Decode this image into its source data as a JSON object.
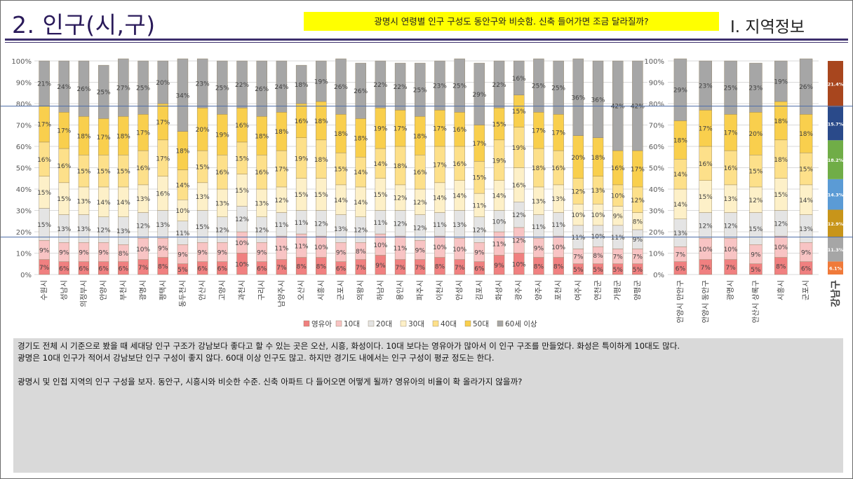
{
  "header": {
    "title": "2. 인구(시,구)",
    "subtitle": "광명시 연령별 인구 구성도 동안구와 비슷함. 신축 들어가면 조금 달라질까?",
    "section": "I. 지역정보"
  },
  "colors": {
    "title_text": "#2a1a5a",
    "rule": "#3c2e6c",
    "subtitle_bg": "#ffff00",
    "comment_bg": "#d9d9d9",
    "guide_line": "#4f6fa8"
  },
  "chart_data": [
    {
      "type": "bar",
      "stacked": true,
      "percent": true,
      "ylim": [
        0,
        100
      ],
      "yticks": [
        "0%",
        "10%",
        "20%",
        "30%",
        "40%",
        "50%",
        "60%",
        "70%",
        "80%",
        "90%",
        "100%"
      ],
      "categories": [
        "수원시",
        "성남시",
        "의정부시",
        "안양시",
        "부천시",
        "광명시",
        "평택시",
        "동두천시",
        "안산시",
        "고양시",
        "과천시",
        "구리시",
        "남양주시",
        "오산시",
        "시흥시",
        "군포시",
        "의왕시",
        "하남시",
        "용인시",
        "파주시",
        "이천시",
        "안성시",
        "김포시",
        "화성시",
        "광주시",
        "양주시",
        "포천시",
        "여주시",
        "연천군",
        "가평군",
        "양평군"
      ],
      "series": [
        {
          "name": "영유아",
          "color": "#f08080",
          "values": [
            7,
            6,
            6,
            6,
            6,
            7,
            8,
            5,
            6,
            6,
            10,
            6,
            7,
            8,
            8,
            6,
            7,
            9,
            7,
            7,
            8,
            7,
            6,
            9,
            10,
            8,
            8,
            5,
            5,
            5,
            5
          ]
        },
        {
          "name": "10대",
          "color": "#f8c4c4",
          "values": [
            9,
            9,
            9,
            9,
            8,
            10,
            9,
            9,
            9,
            9,
            10,
            9,
            11,
            11,
            10,
            9,
            8,
            10,
            11,
            9,
            10,
            10,
            9,
            11,
            12,
            9,
            10,
            7,
            8,
            7,
            7
          ]
        },
        {
          "name": "20대",
          "color": "#e4e4e4",
          "values": [
            15,
            13,
            13,
            12,
            13,
            12,
            13,
            11,
            15,
            12,
            12,
            12,
            11,
            11,
            12,
            13,
            12,
            11,
            12,
            12,
            11,
            13,
            12,
            10,
            12,
            11,
            11,
            11,
            10,
            11,
            9
          ]
        },
        {
          "name": "30대",
          "color": "#fdf0c8",
          "values": [
            15,
            15,
            13,
            14,
            14,
            13,
            16,
            10,
            13,
            13,
            15,
            13,
            12,
            15,
            15,
            14,
            14,
            15,
            12,
            12,
            14,
            14,
            11,
            14,
            16,
            13,
            13,
            10,
            10,
            9,
            8
          ]
        },
        {
          "name": "40대",
          "color": "#fde08a",
          "values": [
            16,
            16,
            15,
            15,
            15,
            16,
            17,
            14,
            15,
            16,
            15,
            16,
            17,
            19,
            18,
            15,
            14,
            14,
            18,
            16,
            17,
            16,
            15,
            19,
            19,
            18,
            16,
            12,
            13,
            10,
            12
          ]
        },
        {
          "name": "50대",
          "color": "#f9cf4d",
          "values": [
            17,
            17,
            18,
            17,
            18,
            17,
            17,
            18,
            20,
            19,
            16,
            18,
            18,
            16,
            18,
            18,
            18,
            19,
            17,
            18,
            17,
            16,
            17,
            15,
            15,
            17,
            17,
            20,
            18,
            16,
            17
          ]
        },
        {
          "name": "60세 이상",
          "color": "#a6a6a6",
          "values": [
            21,
            24,
            26,
            25,
            27,
            25,
            20,
            34,
            23,
            25,
            22,
            26,
            24,
            18,
            19,
            26,
            26,
            22,
            22,
            25,
            23,
            25,
            29,
            22,
            16,
            25,
            25,
            36,
            36,
            42,
            42
          ]
        }
      ],
      "label_suffix": "%",
      "legend": [
        "영유아",
        "10대",
        "20대",
        "30대",
        "40대",
        "50대",
        "60세 이상"
      ],
      "legend_position": "bottom"
    },
    {
      "type": "bar",
      "stacked": true,
      "percent": true,
      "ylim": [
        0,
        100
      ],
      "yticks": [
        "0%",
        "10%",
        "20%",
        "30%",
        "40%",
        "50%",
        "60%",
        "70%",
        "80%",
        "90%",
        "100%"
      ],
      "categories": [
        "안양시 만안구",
        "안양시 동안구",
        "광명시",
        "안산시 상록구",
        "시흥시",
        "군포시"
      ],
      "series": [
        {
          "name": "영유아",
          "color": "#f08080",
          "values": [
            6,
            7,
            7,
            5,
            8,
            6
          ]
        },
        {
          "name": "10대",
          "color": "#f8c4c4",
          "values": [
            7,
            10,
            10,
            9,
            10,
            9
          ]
        },
        {
          "name": "20대",
          "color": "#e4e4e4",
          "values": [
            13,
            12,
            12,
            15,
            12,
            13
          ]
        },
        {
          "name": "30대",
          "color": "#fdf0c8",
          "values": [
            14,
            15,
            13,
            12,
            15,
            14
          ]
        },
        {
          "name": "40대",
          "color": "#fde08a",
          "values": [
            14,
            16,
            16,
            15,
            18,
            15
          ]
        },
        {
          "name": "50대",
          "color": "#f9cf4d",
          "values": [
            18,
            17,
            17,
            20,
            18,
            18
          ]
        },
        {
          "name": "60세 이상",
          "color": "#a6a6a6",
          "values": [
            29,
            23,
            25,
            23,
            19,
            26
          ]
        }
      ],
      "label_suffix": "%"
    },
    {
      "type": "bar",
      "stacked": true,
      "percent": true,
      "categories": [
        "강남구"
      ],
      "series": [
        {
          "name": "영유아",
          "color": "#f07a3a",
          "values": [
            6.1
          ]
        },
        {
          "name": "10대",
          "color": "#a6a6a6",
          "values": [
            11.3
          ]
        },
        {
          "name": "20대",
          "color": "#c8951a",
          "values": [
            12.9
          ]
        },
        {
          "name": "30대",
          "color": "#5b9bd5",
          "values": [
            14.3
          ]
        },
        {
          "name": "40대",
          "color": "#70ad47",
          "values": [
            18.2
          ]
        },
        {
          "name": "50대",
          "color": "#2a4a8a",
          "values": [
            15.7
          ]
        },
        {
          "name": "60세 이상",
          "color": "#a8461e",
          "values": [
            21.4
          ]
        }
      ],
      "label_suffix": "%"
    }
  ],
  "comment": {
    "line1": "경기도 전체 시 기준으로 봤을 때 세대당 인구 구조가 강남보다 좋다고 할 수 있는 곳은 오산, 시흥, 화성이다. 10대 보다는 영유아가 많아서 이 인구 구조를 만들었다. 화성은 특이하게 10대도 많다.",
    "line2": "광명은 10대 인구가 적어서 강남보단 인구 구성이 좋지 않다. 60대 이상 인구도 많고. 하지만 경기도 내에서는 인구 구성이 평균 정도는 한다.",
    "line3": "광명시 및 인접 지역의 인구 구성을 보자. 동안구, 시흥시와 비슷한 수준. 신축 아파트 다 들어오면 어떻게 될까? 영유아의 비율이 확 올라가지 않을까?"
  }
}
